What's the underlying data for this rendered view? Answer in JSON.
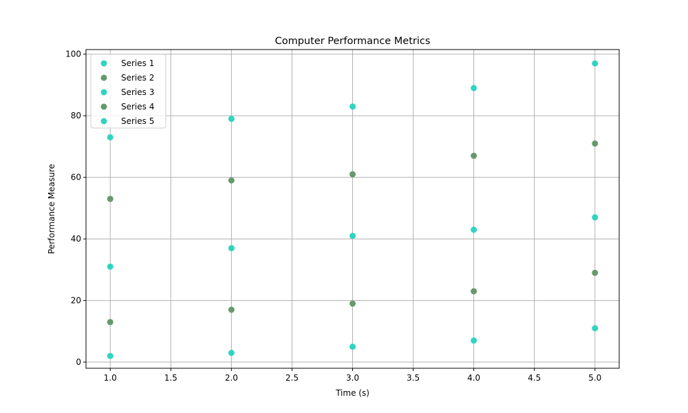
{
  "chart_data": {
    "type": "scatter",
    "title": "Computer Performance Metrics",
    "xlabel": "Time (s)",
    "ylabel": "Performance Measure",
    "xlim": [
      0.8,
      5.2
    ],
    "ylim": [
      -2,
      101.5
    ],
    "xticks": [
      1.0,
      1.5,
      2.0,
      2.5,
      3.0,
      3.5,
      4.0,
      4.5,
      5.0
    ],
    "xtick_labels": [
      "1.0",
      "1.5",
      "2.0",
      "2.5",
      "3.0",
      "3.5",
      "4.0",
      "4.5",
      "5.0"
    ],
    "yticks": [
      0,
      20,
      40,
      60,
      80,
      100
    ],
    "ytick_labels": [
      "0",
      "20",
      "40",
      "60",
      "80",
      "100"
    ],
    "grid": true,
    "legend_position": "top-left",
    "x": [
      1,
      2,
      3,
      4,
      5
    ],
    "series": [
      {
        "name": "Series 1",
        "color": "#2fd4c0",
        "values": [
          2,
          3,
          5,
          7,
          11
        ]
      },
      {
        "name": "Series 2",
        "color": "#66996b",
        "values": [
          13,
          17,
          19,
          23,
          29
        ]
      },
      {
        "name": "Series 3",
        "color": "#2fd4c0",
        "values": [
          31,
          37,
          41,
          43,
          47
        ]
      },
      {
        "name": "Series 4",
        "color": "#66996b",
        "values": [
          53,
          59,
          61,
          67,
          71
        ]
      },
      {
        "name": "Series 5",
        "color": "#2fd4c0",
        "values": [
          73,
          79,
          83,
          89,
          97
        ]
      }
    ]
  }
}
